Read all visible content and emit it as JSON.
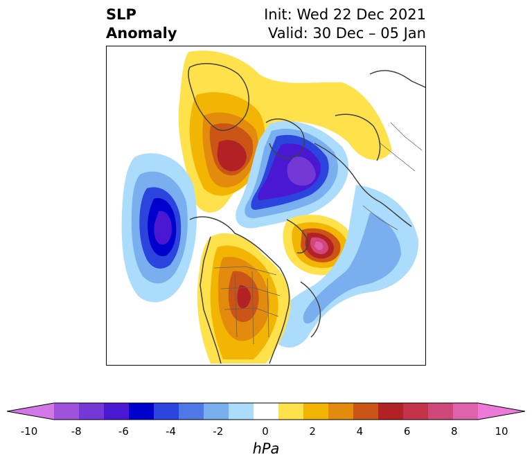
{
  "title": {
    "line1_left": "SLP",
    "line2_left": "Anomaly",
    "line1_right": "Init: Wed 22 Dec 2021",
    "line2_right": "Valid: 30 Dec – 05 Jan"
  },
  "colorbar": {
    "units": "hPa",
    "tick_labels": [
      "-10",
      "-8",
      "-6",
      "-4",
      "-2",
      "0",
      "2",
      "4",
      "6",
      "8",
      "10"
    ],
    "levels": [
      -10,
      -9,
      -8,
      -7,
      -6,
      -5,
      -4,
      -3,
      -2,
      -1,
      1,
      2,
      3,
      4,
      5,
      6,
      7,
      8,
      9,
      10
    ],
    "colors": [
      "#d277e6",
      "#9f52dc",
      "#7438d4",
      "#4a17d2",
      "#0000cc",
      "#2a44dd",
      "#4f78e6",
      "#79afee",
      "#acdcfb",
      "#ffffff",
      "#ffe24b",
      "#f2b503",
      "#e38b0c",
      "#cb5516",
      "#b22224",
      "#c23349",
      "#d0487a",
      "#df62ac",
      "#eb7ad8"
    ],
    "extend": "both"
  },
  "map": {
    "projection": "north polar stereographic",
    "features": [
      {
        "name": "positive anomaly over Greenland/Baffin",
        "peak_hpa": 6
      },
      {
        "name": "negative anomaly over Arctic/Siberia",
        "peak_hpa": -8
      },
      {
        "name": "negative anomaly over North Pacific",
        "peak_hpa": -7
      },
      {
        "name": "positive anomaly over North Atlantic",
        "peak_hpa": 9
      },
      {
        "name": "positive anomaly over central North America",
        "peak_hpa": 5
      },
      {
        "name": "negative anomaly over western Atlantic",
        "peak_hpa": -3
      }
    ]
  }
}
